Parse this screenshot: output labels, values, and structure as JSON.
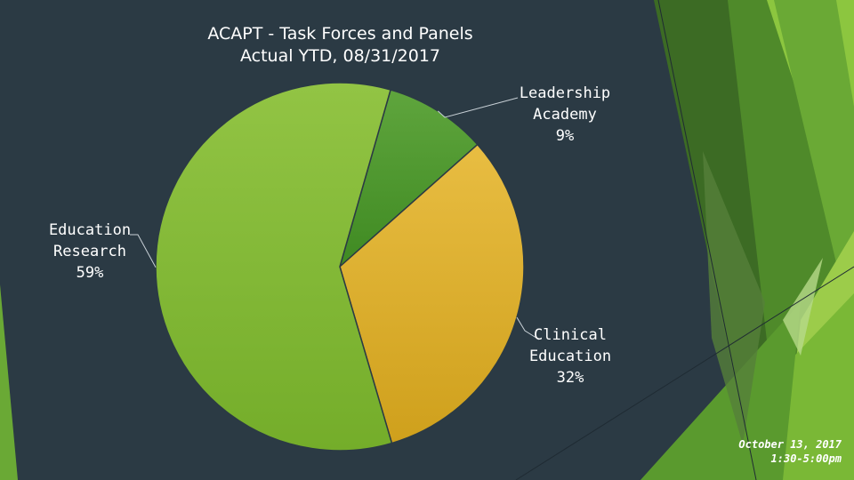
{
  "slide": {
    "background": "#2b3a44",
    "footer_line1": "October 13, 2017",
    "footer_line2": "1:30-5:00pm"
  },
  "chart_data": {
    "type": "pie",
    "title_line1": "ACAPT - Task Forces and Panels",
    "title_line2": "Actual YTD, 08/31/2017",
    "slices": [
      {
        "name": "Leadership Academy",
        "label_line1": "Leadership",
        "label_line2": "Academy",
        "value": 9,
        "display": "9%",
        "color_light": "#5fa53d",
        "color_dark": "#3f8a22"
      },
      {
        "name": "Clinical Education",
        "label_line1": "Clinical",
        "label_line2": "Education",
        "value": 32,
        "display": "32%",
        "color_light": "#e8bd42",
        "color_dark": "#cfa01c"
      },
      {
        "name": "Education Research",
        "label_line1": "Education",
        "label_line2": "Research",
        "value": 59,
        "display": "59%",
        "color_light": "#92c444",
        "color_dark": "#74ad2a"
      }
    ],
    "legend": "none"
  }
}
